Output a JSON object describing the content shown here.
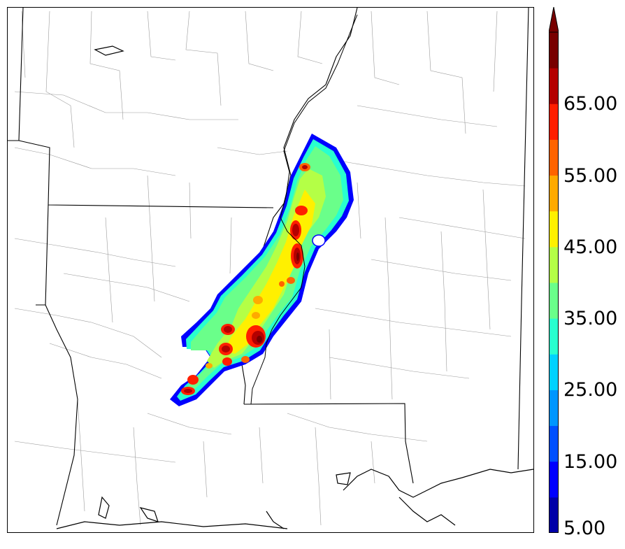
{
  "colorbar": {
    "labels": [
      "5.00",
      "15.00",
      "25.00",
      "35.00",
      "45.00",
      "55.00",
      "65.00"
    ],
    "colors": [
      "#0000a8",
      "#0000ff",
      "#0050ff",
      "#0096ff",
      "#00d2ff",
      "#28ffcf",
      "#6aff8a",
      "#b4ff46",
      "#fff000",
      "#ffaa00",
      "#ff6400",
      "#ff1e00",
      "#b40000",
      "#780000"
    ],
    "extend": "max"
  },
  "map": {
    "projection": "regional",
    "features": [
      "state-borders",
      "county-borders",
      "coastline"
    ],
    "field": "reflectivity-swath"
  }
}
